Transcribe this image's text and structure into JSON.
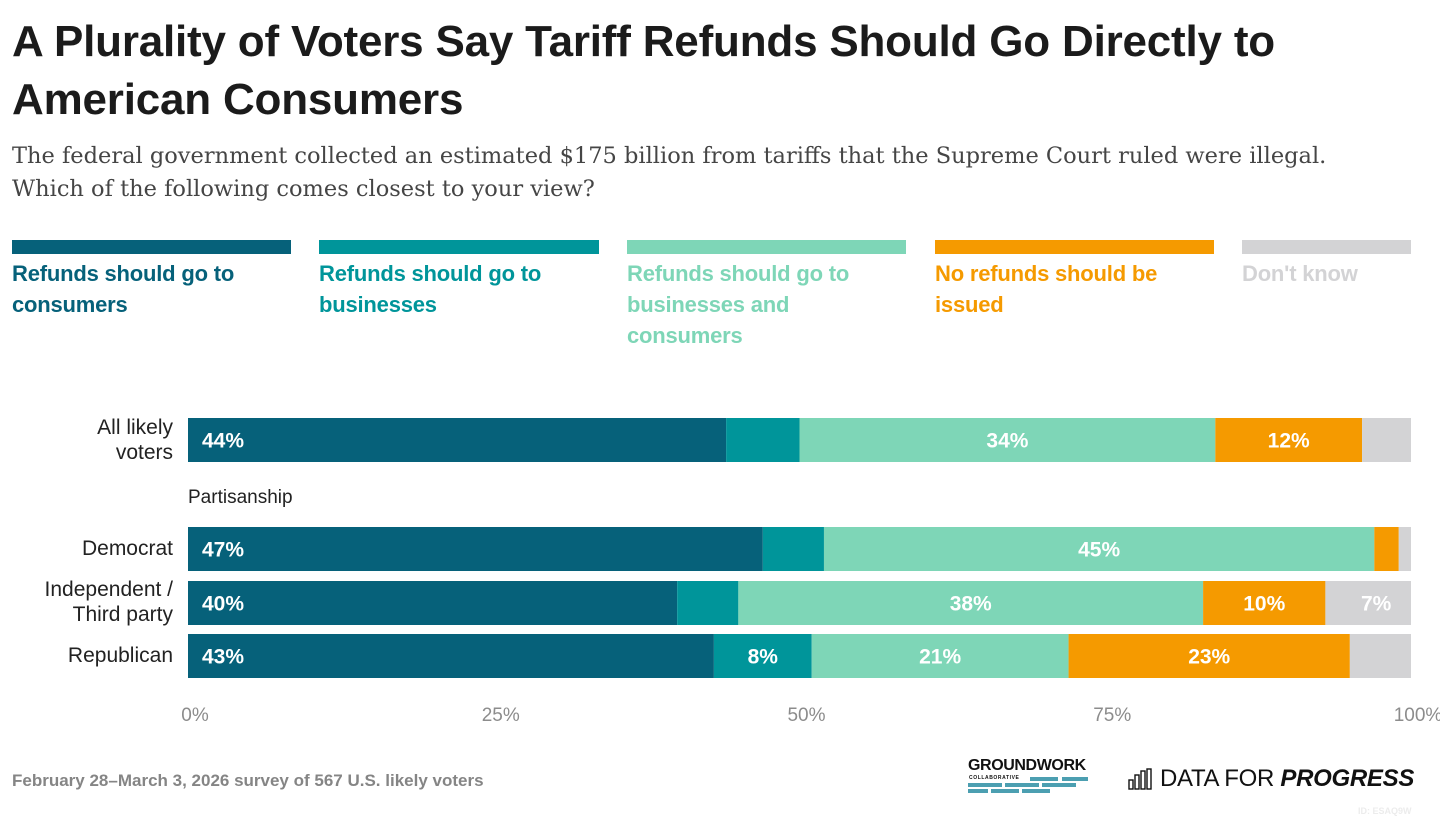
{
  "title": "A Plurality of Voters Say Tariff Refunds Should Go Directly to American Consumers",
  "subtitle_lines": [
    "The federal government collected an estimated $175 billion from tariffs that the Supreme Court ruled were illegal.",
    "Which of the following comes closest to your view?"
  ],
  "footer": {
    "note": "February 28–March 3, 2026 survey of 567 U.S. likely voters",
    "chart_id": "ID: ESAQ9W"
  },
  "logos": {
    "groundwork": "GROUNDWORK",
    "groundwork_sub": "COLLABORATIVE",
    "dfp_light": "DATA FOR ",
    "dfp_bold": "PROGRESS"
  },
  "chart_data": {
    "type": "bar",
    "orientation": "horizontal",
    "stacked": true,
    "title": "A Plurality of Voters Say Tariff Refunds Should Go Directly to American Consumers",
    "xlabel": "",
    "ylabel": "",
    "xlim": [
      0,
      100
    ],
    "grid": false,
    "legend_position": "top",
    "x_tick_values": [
      0,
      25,
      50,
      75,
      100
    ],
    "x_tick_labels": [
      "0%",
      "25%",
      "50%",
      "75%",
      "100%"
    ],
    "series": [
      {
        "name": "Refunds should go to consumers",
        "color": "#06617a"
      },
      {
        "name": "Refunds should go to businesses",
        "color": "#00959a"
      },
      {
        "name": "Refunds should go to businesses and consumers",
        "color": "#7ed6b7"
      },
      {
        "name": "No refunds should be issued",
        "color": "#f59a00"
      },
      {
        "name": "Don't know",
        "color": "#d3d3d5"
      }
    ],
    "groups": [
      {
        "label": "",
        "rows": [
          0
        ]
      },
      {
        "label": "Partisanship",
        "rows": [
          1,
          2,
          3
        ]
      }
    ],
    "rows": [
      {
        "label": "All likely\nvoters",
        "values": [
          44,
          6,
          34,
          12,
          4
        ],
        "labels": [
          "44%",
          null,
          "34%",
          "12%",
          null
        ]
      },
      {
        "label": "Democrat",
        "values": [
          47,
          5,
          45,
          2,
          1
        ],
        "labels": [
          "47%",
          null,
          "45%",
          null,
          null
        ]
      },
      {
        "label": "Independent /\nThird party",
        "values": [
          40,
          5,
          38,
          10,
          7
        ],
        "labels": [
          "40%",
          null,
          "38%",
          "10%",
          "7%"
        ]
      },
      {
        "label": "Republican",
        "values": [
          43,
          8,
          21,
          23,
          5
        ],
        "labels": [
          "43%",
          "8%",
          "21%",
          "23%",
          null
        ]
      }
    ]
  }
}
